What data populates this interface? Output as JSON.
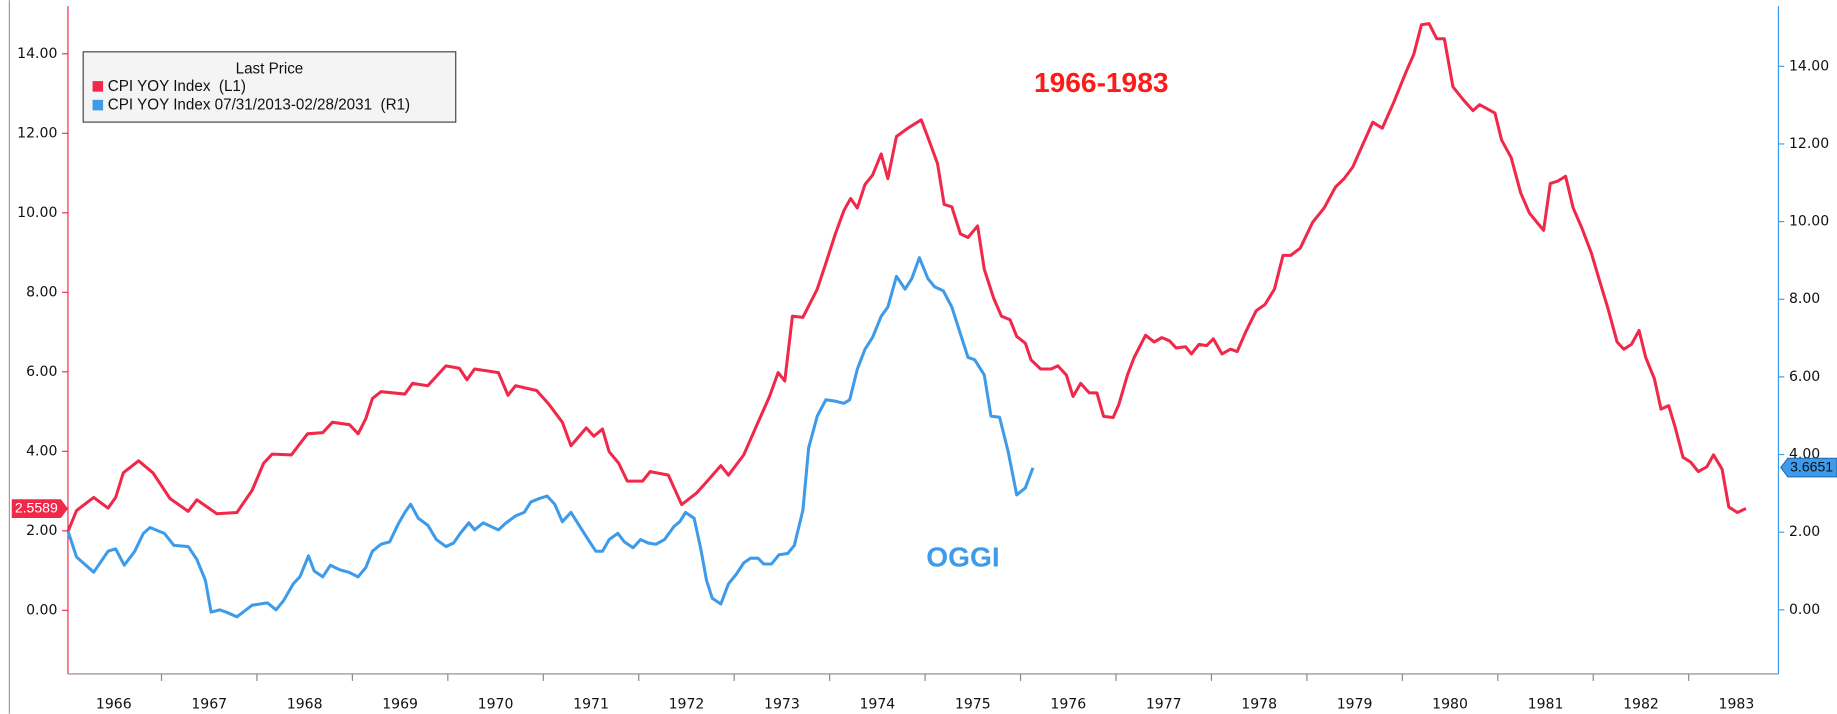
{
  "chart_data": {
    "type": "line",
    "annotations": [
      "1966-1983",
      "OGGI"
    ],
    "legend": {
      "title": "Last Price",
      "position": "upper left"
    },
    "xlim": [
      1966.02,
      1983.94
    ],
    "xticks": [
      1966,
      1967,
      1968,
      1969,
      1970,
      1971,
      1972,
      1973,
      1974,
      1975,
      1976,
      1977,
      1978,
      1979,
      1980,
      1981,
      1982,
      1983
    ],
    "ylim": [
      -1.6,
      15.2
    ],
    "yticks": [
      {
        "value": 0,
        "label": "0.00"
      },
      {
        "value": 2,
        "label": "2.00"
      },
      {
        "value": 4,
        "label": "4.00"
      },
      {
        "value": 6,
        "label": "6.00"
      },
      {
        "value": 8,
        "label": "8.00"
      },
      {
        "value": 10,
        "label": "10.00"
      },
      {
        "value": 12,
        "label": "12.00"
      },
      {
        "value": 14,
        "label": "14.00"
      }
    ],
    "y2lim": [
      -1.65,
      15.55
    ],
    "y2ticks": [
      {
        "value": 0,
        "label": "0.00"
      },
      {
        "value": 2,
        "label": "2.00"
      },
      {
        "value": 4,
        "label": "4.00"
      },
      {
        "value": 6,
        "label": "6.00"
      },
      {
        "value": 8,
        "label": "8.00"
      },
      {
        "value": 10,
        "label": "10.00"
      },
      {
        "value": 12,
        "label": "12.00"
      },
      {
        "value": 14,
        "label": "14.00"
      }
    ],
    "series": [
      {
        "name": "CPI YOY Index  (L1)",
        "color": "#f0284a",
        "axis": "y",
        "last_price": 2.5589,
        "x": [
          1966.02,
          1966.11,
          1966.29,
          1966.44,
          1966.52,
          1966.6,
          1966.76,
          1966.91,
          1967.09,
          1967.28,
          1967.37,
          1967.58,
          1967.79,
          1967.95,
          1968.07,
          1968.16,
          1968.36,
          1968.53,
          1968.69,
          1968.79,
          1968.97,
          1969.06,
          1969.14,
          1969.21,
          1969.3,
          1969.55,
          1969.63,
          1969.79,
          1969.98,
          1970.12,
          1970.2,
          1970.28,
          1970.53,
          1970.63,
          1970.71,
          1970.93,
          1971.06,
          1971.2,
          1971.29,
          1971.45,
          1971.53,
          1971.62,
          1971.69,
          1971.79,
          1971.88,
          1972.04,
          1972.12,
          1972.31,
          1972.45,
          1972.61,
          1972.74,
          1972.86,
          1972.94,
          1973.1,
          1973.23,
          1973.37,
          1973.46,
          1973.53,
          1973.61,
          1973.72,
          1973.87,
          1973.96,
          1974.06,
          1974.15,
          1974.22,
          1974.29,
          1974.37,
          1974.45,
          1974.54,
          1974.61,
          1974.7,
          1974.82,
          1974.96,
          1975.04,
          1975.13,
          1975.2,
          1975.28,
          1975.37,
          1975.45,
          1975.55,
          1975.62,
          1975.72,
          1975.8,
          1975.89,
          1975.96,
          1976.05,
          1976.11,
          1976.21,
          1976.32,
          1976.39,
          1976.48,
          1976.55,
          1976.63,
          1976.72,
          1976.8,
          1976.87,
          1976.97,
          1977.03,
          1977.12,
          1977.19,
          1977.31,
          1977.4,
          1977.48,
          1977.56,
          1977.63,
          1977.73,
          1977.79,
          1977.87,
          1977.95,
          1978.02,
          1978.11,
          1978.2,
          1978.27,
          1978.36,
          1978.47,
          1978.56,
          1978.66,
          1978.75,
          1978.83,
          1978.93,
          1979.06,
          1979.18,
          1979.3,
          1979.39,
          1979.48,
          1979.58,
          1979.69,
          1979.79,
          1979.91,
          1980.04,
          1980.12,
          1980.2,
          1980.28,
          1980.36,
          1980.44,
          1980.53,
          1980.64,
          1980.74,
          1980.81,
          1980.9,
          1980.97,
          1981.04,
          1981.14,
          1981.24,
          1981.33,
          1981.41,
          1981.48,
          1981.55,
          1981.63,
          1981.71,
          1981.79,
          1981.88,
          1981.98,
          1982.06,
          1982.15,
          1982.25,
          1982.32,
          1982.4,
          1982.48,
          1982.55,
          1982.64,
          1982.71,
          1982.79,
          1982.86,
          1982.94,
          1983.02,
          1983.1,
          1983.19,
          1983.26,
          1983.35,
          1983.42,
          1983.51,
          1983.6
        ],
        "values": [
          1.98,
          2.51,
          2.84,
          2.57,
          2.84,
          3.46,
          3.76,
          3.46,
          2.81,
          2.49,
          2.78,
          2.43,
          2.46,
          3.02,
          3.7,
          3.93,
          3.91,
          4.44,
          4.47,
          4.73,
          4.67,
          4.44,
          4.82,
          5.33,
          5.5,
          5.44,
          5.71,
          5.65,
          6.15,
          6.09,
          5.8,
          6.07,
          5.98,
          5.41,
          5.65,
          5.53,
          5.18,
          4.73,
          4.14,
          4.59,
          4.38,
          4.56,
          3.99,
          3.7,
          3.25,
          3.25,
          3.49,
          3.4,
          2.66,
          2.96,
          3.31,
          3.64,
          3.4,
          3.91,
          4.62,
          5.38,
          5.98,
          5.77,
          7.4,
          7.37,
          8.08,
          8.73,
          9.47,
          10.06,
          10.36,
          10.12,
          10.71,
          10.95,
          11.48,
          10.86,
          11.92,
          12.13,
          12.34,
          11.83,
          11.24,
          10.21,
          10.15,
          9.47,
          9.38,
          9.67,
          8.58,
          7.84,
          7.4,
          7.31,
          6.89,
          6.72,
          6.3,
          6.07,
          6.07,
          6.15,
          5.92,
          5.38,
          5.71,
          5.47,
          5.47,
          4.88,
          4.85,
          5.18,
          5.92,
          6.36,
          6.92,
          6.75,
          6.86,
          6.78,
          6.6,
          6.63,
          6.45,
          6.69,
          6.66,
          6.83,
          6.45,
          6.57,
          6.51,
          7.01,
          7.54,
          7.69,
          8.08,
          8.93,
          8.93,
          9.11,
          9.76,
          10.12,
          10.65,
          10.86,
          11.15,
          11.69,
          12.28,
          12.13,
          12.78,
          13.55,
          13.99,
          14.73,
          14.76,
          14.38,
          14.38,
          13.17,
          12.84,
          12.57,
          12.72,
          12.6,
          12.51,
          11.83,
          11.39,
          10.5,
          10.0,
          9.76,
          9.56,
          10.74,
          10.8,
          10.92,
          10.12,
          9.62,
          8.99,
          8.34,
          7.63,
          6.75,
          6.57,
          6.69,
          7.04,
          6.36,
          5.83,
          5.06,
          5.15,
          4.59,
          3.85,
          3.73,
          3.49,
          3.61,
          3.91,
          3.55,
          2.6,
          2.46,
          2.56
        ]
      },
      {
        "name": "CPI YOY Index 07/31/2013-02/28/2031  (R1)",
        "color": "#3d9be9",
        "axis": "y2",
        "last_price": 3.6651,
        "x": [
          1966.02,
          1966.11,
          1966.29,
          1966.44,
          1966.52,
          1966.61,
          1966.72,
          1966.81,
          1966.88,
          1967.03,
          1967.13,
          1967.28,
          1967.37,
          1967.46,
          1967.52,
          1967.61,
          1967.68,
          1967.79,
          1967.95,
          1968.11,
          1968.2,
          1968.28,
          1968.38,
          1968.45,
          1968.54,
          1968.6,
          1968.69,
          1968.77,
          1968.87,
          1968.96,
          1969.06,
          1969.14,
          1969.21,
          1969.3,
          1969.39,
          1969.48,
          1969.55,
          1969.61,
          1969.69,
          1969.79,
          1969.88,
          1969.98,
          1970.06,
          1970.13,
          1970.22,
          1970.28,
          1970.37,
          1970.53,
          1970.61,
          1970.71,
          1970.8,
          1970.87,
          1970.96,
          1971.04,
          1971.12,
          1971.2,
          1971.29,
          1971.39,
          1971.47,
          1971.55,
          1971.62,
          1971.69,
          1971.78,
          1971.85,
          1971.94,
          1972.02,
          1972.1,
          1972.18,
          1972.27,
          1972.37,
          1972.43,
          1972.49,
          1972.58,
          1972.65,
          1972.71,
          1972.77,
          1972.86,
          1972.94,
          1973.02,
          1973.1,
          1973.17,
          1973.25,
          1973.31,
          1973.39,
          1973.47,
          1973.56,
          1973.63,
          1973.72,
          1973.78,
          1973.87,
          1973.96,
          1974.05,
          1974.15,
          1974.21,
          1974.29,
          1974.37,
          1974.45,
          1974.54,
          1974.61,
          1974.7,
          1974.79,
          1974.86,
          1974.94,
          1975.03,
          1975.1,
          1975.19,
          1975.28,
          1975.37,
          1975.45,
          1975.52,
          1975.62,
          1975.69,
          1975.78,
          1975.87,
          1975.96,
          1976.05,
          1976.13
        ],
        "values": [
          2.03,
          1.36,
          0.97,
          1.51,
          1.57,
          1.15,
          1.51,
          1.97,
          2.12,
          1.97,
          1.66,
          1.63,
          1.3,
          0.76,
          -0.06,
          0.0,
          -0.06,
          -0.18,
          0.12,
          0.18,
          0.0,
          0.24,
          0.67,
          0.85,
          1.39,
          1.0,
          0.85,
          1.15,
          1.03,
          0.97,
          0.85,
          1.09,
          1.51,
          1.69,
          1.75,
          2.21,
          2.51,
          2.72,
          2.36,
          2.18,
          1.81,
          1.63,
          1.72,
          1.97,
          2.24,
          2.06,
          2.24,
          2.06,
          2.24,
          2.42,
          2.51,
          2.78,
          2.87,
          2.93,
          2.72,
          2.27,
          2.51,
          2.12,
          1.81,
          1.51,
          1.51,
          1.81,
          1.97,
          1.75,
          1.6,
          1.81,
          1.72,
          1.69,
          1.81,
          2.15,
          2.27,
          2.51,
          2.36,
          1.57,
          0.76,
          0.3,
          0.15,
          0.67,
          0.91,
          1.21,
          1.33,
          1.33,
          1.18,
          1.18,
          1.42,
          1.45,
          1.66,
          2.57,
          4.17,
          4.99,
          5.41,
          5.38,
          5.32,
          5.41,
          6.2,
          6.71,
          7.02,
          7.56,
          7.8,
          8.59,
          8.26,
          8.53,
          9.07,
          8.53,
          8.32,
          8.22,
          7.8,
          7.11,
          6.5,
          6.44,
          6.05,
          4.99,
          4.96,
          4.08,
          2.96,
          3.14,
          3.66
        ]
      }
    ]
  }
}
